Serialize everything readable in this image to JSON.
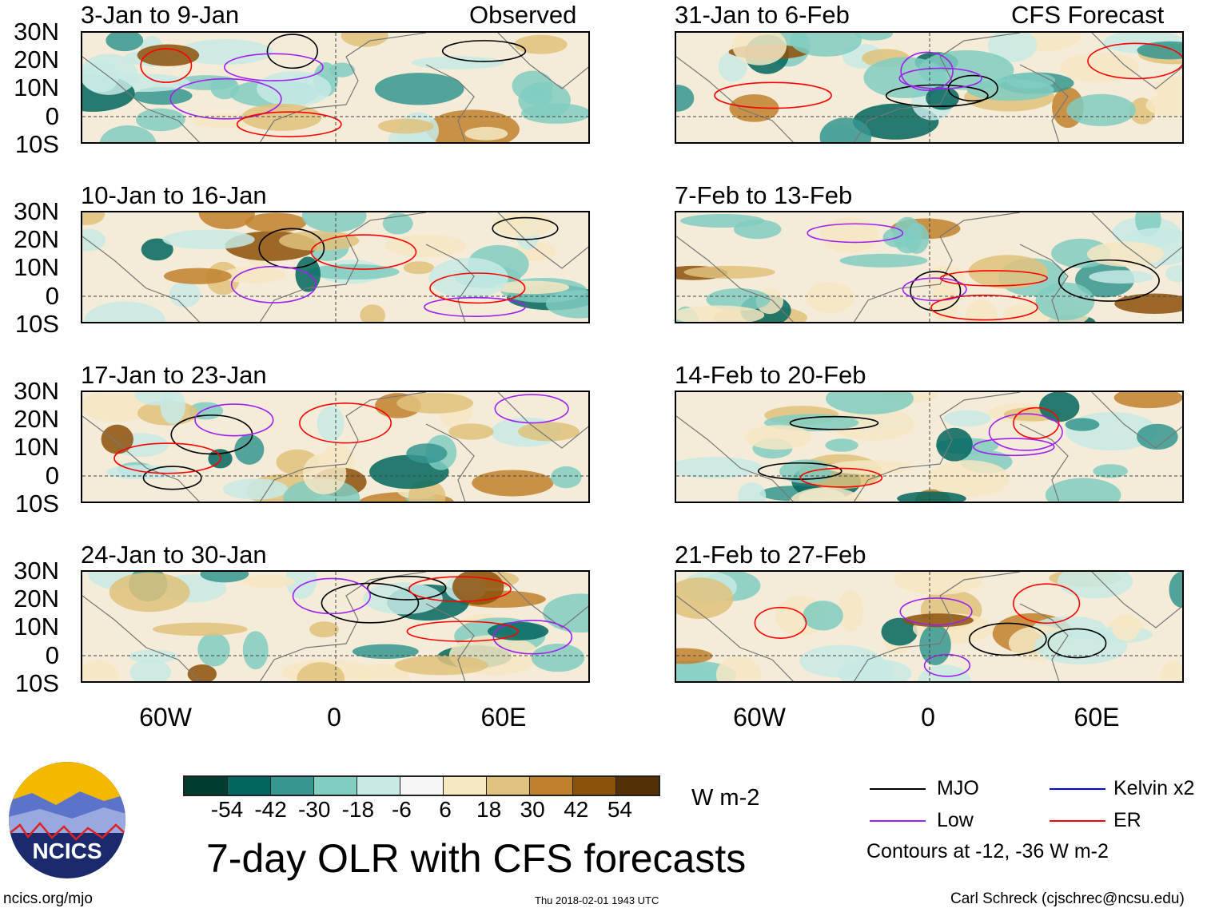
{
  "left_column": {
    "header_right": "Observed",
    "panels": [
      {
        "title": "3-Jan to 9-Jan"
      },
      {
        "title": "10-Jan to 16-Jan"
      },
      {
        "title": "17-Jan to 23-Jan"
      },
      {
        "title": "24-Jan to 30-Jan"
      }
    ]
  },
  "right_column": {
    "header_right": "CFS Forecast",
    "panels": [
      {
        "title": "31-Jan to 6-Feb"
      },
      {
        "title": "7-Feb to 13-Feb"
      },
      {
        "title": "14-Feb to 20-Feb"
      },
      {
        "title": "21-Feb to 27-Feb"
      }
    ]
  },
  "lat_labels": [
    "30N",
    "20N",
    "10N",
    "0",
    "10S"
  ],
  "lon_labels": [
    "60W",
    "0",
    "60E"
  ],
  "colorbar": {
    "colors": [
      "#003c30",
      "#01665e",
      "#35978f",
      "#80cdc1",
      "#c7eae5",
      "#f5f5f5",
      "#f6e8c3",
      "#dfc27d",
      "#bf812d",
      "#8c510a",
      "#543005"
    ],
    "labels": [
      "-54",
      "-42",
      "-30",
      "-18",
      "-6",
      "6",
      "18",
      "30",
      "42",
      "54"
    ],
    "units": "W m-2"
  },
  "legend": {
    "items": [
      {
        "label": "MJO",
        "color": "#000000"
      },
      {
        "label": "Kelvin x2",
        "color": "#0000ff"
      },
      {
        "label": "Low",
        "color": "#a020f0"
      },
      {
        "label": "ER",
        "color": "#ff0000"
      }
    ],
    "note": "Contours at -12, -36 W m-2"
  },
  "title": "7-day OLR with CFS forecasts",
  "logo_text": "NCICS",
  "footer": {
    "left": "ncics.org/mjo",
    "center": "Thu 2018-02-01 1943 UTC",
    "right": "Carl Schreck (cjschrec@ncsu.edu)"
  }
}
